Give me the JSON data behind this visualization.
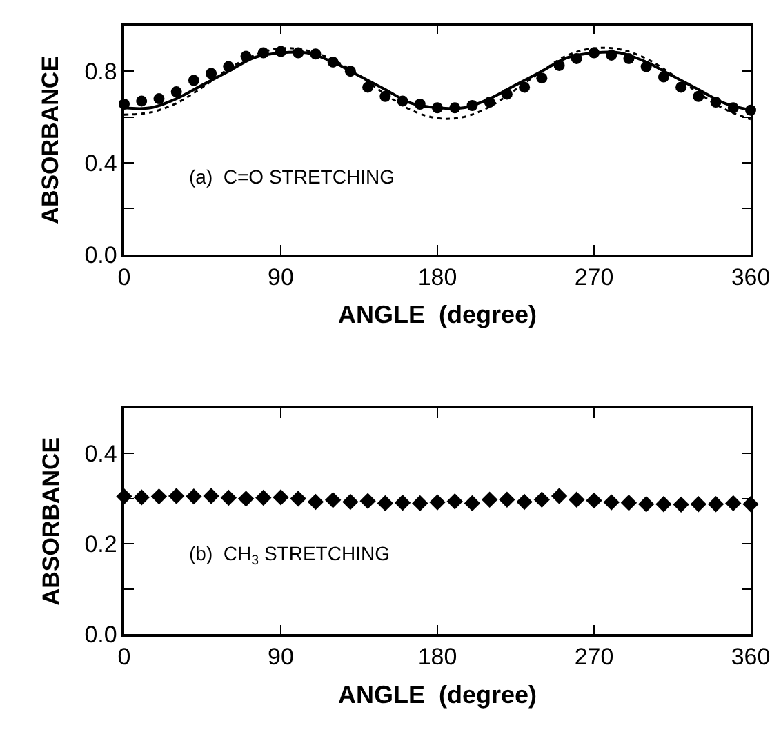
{
  "chart_data": [
    {
      "type": "scatter",
      "xlabel": "ANGLE  (degree)",
      "ylabel": "ABSORBANCE",
      "annotations": [
        "(a)  C=O STRETCHING"
      ],
      "xlim": [
        0,
        360
      ],
      "xticks": [
        0,
        90,
        180,
        270,
        360
      ],
      "ylim": [
        0,
        1.0
      ],
      "yticks": [
        {
          "value": 0,
          "label": "0.0"
        },
        {
          "value": 0.2,
          "label": null
        },
        0.4,
        {
          "value": 0.6,
          "label": null
        },
        0.8
      ],
      "series": [
        {
          "marker": "circle",
          "color": "#000000",
          "x": [
            0,
            10,
            20,
            30,
            40,
            50,
            60,
            70,
            80,
            90,
            100,
            110,
            120,
            130,
            140,
            150,
            160,
            170,
            180,
            190,
            200,
            210,
            220,
            230,
            240,
            250,
            260,
            270,
            280,
            290,
            300,
            310,
            320,
            330,
            340,
            350,
            360
          ],
          "values": [
            0.656,
            0.67,
            0.68,
            0.71,
            0.76,
            0.79,
            0.82,
            0.865,
            0.88,
            0.886,
            0.88,
            0.875,
            0.84,
            0.8,
            0.73,
            0.69,
            0.67,
            0.656,
            0.64,
            0.64,
            0.65,
            0.665,
            0.7,
            0.73,
            0.77,
            0.825,
            0.855,
            0.88,
            0.87,
            0.855,
            0.82,
            0.775,
            0.73,
            0.69,
            0.665,
            0.64,
            0.63
          ]
        },
        {
          "type": "line",
          "line_style": "solid",
          "color": "#000000",
          "x": [
            0,
            15,
            30,
            45,
            60,
            75,
            90,
            105,
            120,
            135,
            150,
            165,
            180,
            195,
            210,
            225,
            240,
            255,
            270,
            285,
            300,
            315,
            330,
            345,
            360
          ],
          "values": [
            0.64,
            0.64,
            0.68,
            0.74,
            0.8,
            0.86,
            0.88,
            0.88,
            0.84,
            0.78,
            0.72,
            0.66,
            0.64,
            0.64,
            0.68,
            0.74,
            0.8,
            0.86,
            0.88,
            0.88,
            0.84,
            0.78,
            0.72,
            0.66,
            0.63
          ]
        },
        {
          "type": "line",
          "line_style": "dotted",
          "color": "#000000",
          "x": [
            0,
            15,
            30,
            45,
            60,
            75,
            90,
            105,
            120,
            135,
            150,
            165,
            180,
            195,
            210,
            225,
            240,
            255,
            270,
            285,
            300,
            315,
            330,
            345,
            360
          ],
          "values": [
            0.61,
            0.62,
            0.66,
            0.73,
            0.81,
            0.87,
            0.9,
            0.89,
            0.85,
            0.78,
            0.7,
            0.63,
            0.595,
            0.6,
            0.645,
            0.72,
            0.8,
            0.87,
            0.9,
            0.895,
            0.855,
            0.785,
            0.705,
            0.635,
            0.59
          ]
        }
      ]
    },
    {
      "type": "scatter",
      "xlabel": "ANGLE  (degree)",
      "ylabel": "ABSORBANCE",
      "annotations": [
        "(b)  CH$_{3}$ STRETCHING"
      ],
      "xlim": [
        0,
        360
      ],
      "xticks": [
        0,
        90,
        180,
        270,
        360
      ],
      "ylim": [
        0,
        0.5
      ],
      "yticks": [
        {
          "value": 0,
          "label": "0.0"
        },
        {
          "value": 0.1,
          "label": null
        },
        0.2,
        {
          "value": 0.3,
          "label": null
        },
        0.4
      ],
      "series": [
        {
          "marker": "diamond",
          "color": "#000000",
          "x": [
            0,
            10,
            20,
            30,
            40,
            50,
            60,
            70,
            80,
            90,
            100,
            110,
            120,
            130,
            140,
            150,
            160,
            170,
            180,
            190,
            200,
            210,
            220,
            230,
            240,
            250,
            260,
            270,
            280,
            290,
            300,
            310,
            320,
            330,
            340,
            350,
            360
          ],
          "values": [
            0.305,
            0.303,
            0.305,
            0.306,
            0.305,
            0.306,
            0.302,
            0.3,
            0.302,
            0.303,
            0.3,
            0.293,
            0.297,
            0.293,
            0.295,
            0.29,
            0.291,
            0.29,
            0.292,
            0.294,
            0.29,
            0.298,
            0.298,
            0.293,
            0.298,
            0.306,
            0.298,
            0.296,
            0.292,
            0.291,
            0.288,
            0.288,
            0.287,
            0.288,
            0.288,
            0.29,
            0.288
          ]
        }
      ]
    }
  ]
}
